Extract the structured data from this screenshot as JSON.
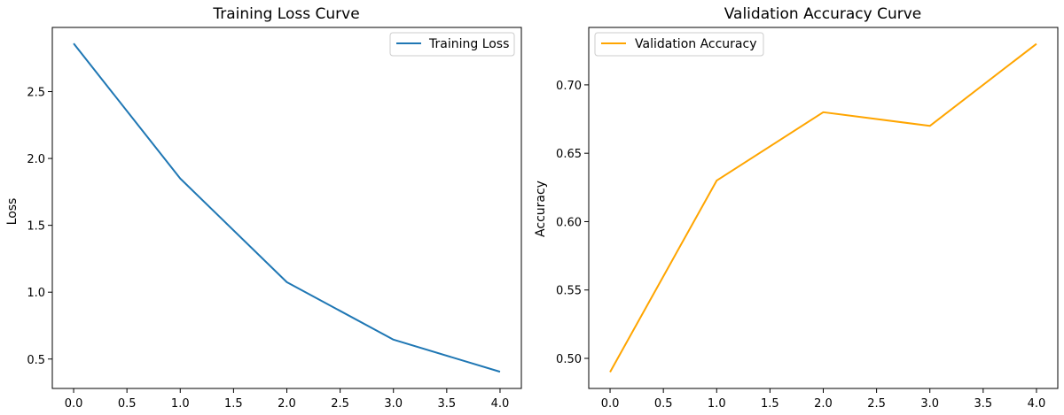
{
  "chart_data": [
    {
      "type": "line",
      "title": "Training Loss Curve",
      "xlabel": "",
      "ylabel": "Loss",
      "x": [
        0,
        1,
        2,
        3,
        4
      ],
      "series": [
        {
          "name": "Training Loss",
          "values": [
            2.86,
            1.85,
            1.075,
            0.645,
            0.405
          ],
          "color": "#1f77b4"
        }
      ],
      "xlim": [
        -0.2,
        4.2
      ],
      "ylim": [
        0.28,
        2.98
      ],
      "xticks": [
        0.0,
        0.5,
        1.0,
        1.5,
        2.0,
        2.5,
        3.0,
        3.5,
        4.0
      ],
      "xtick_labels": [
        "0.0",
        "0.5",
        "1.0",
        "1.5",
        "2.0",
        "2.5",
        "3.0",
        "3.5",
        "4.0"
      ],
      "yticks": [
        0.5,
        1.0,
        1.5,
        2.0,
        2.5
      ],
      "ytick_labels": [
        "0.5",
        "1.0",
        "1.5",
        "2.0",
        "2.5"
      ],
      "grid": false,
      "legend": "upper right"
    },
    {
      "type": "line",
      "title": "Validation Accuracy Curve",
      "xlabel": "",
      "ylabel": "Accuracy",
      "x": [
        0,
        1,
        2,
        3,
        4
      ],
      "series": [
        {
          "name": "Validation Accuracy",
          "values": [
            0.49,
            0.63,
            0.68,
            0.67,
            0.73
          ],
          "color": "#ffa500"
        }
      ],
      "xlim": [
        -0.2,
        4.2
      ],
      "ylim": [
        0.478,
        0.742
      ],
      "xticks": [
        0.0,
        0.5,
        1.0,
        1.5,
        2.0,
        2.5,
        3.0,
        3.5,
        4.0
      ],
      "xtick_labels": [
        "0.0",
        "0.5",
        "1.0",
        "1.5",
        "2.0",
        "2.5",
        "3.0",
        "3.5",
        "4.0"
      ],
      "yticks": [
        0.5,
        0.55,
        0.6,
        0.65,
        0.7
      ],
      "ytick_labels": [
        "0.50",
        "0.55",
        "0.60",
        "0.65",
        "0.70"
      ],
      "grid": false,
      "legend": "upper left"
    }
  ]
}
